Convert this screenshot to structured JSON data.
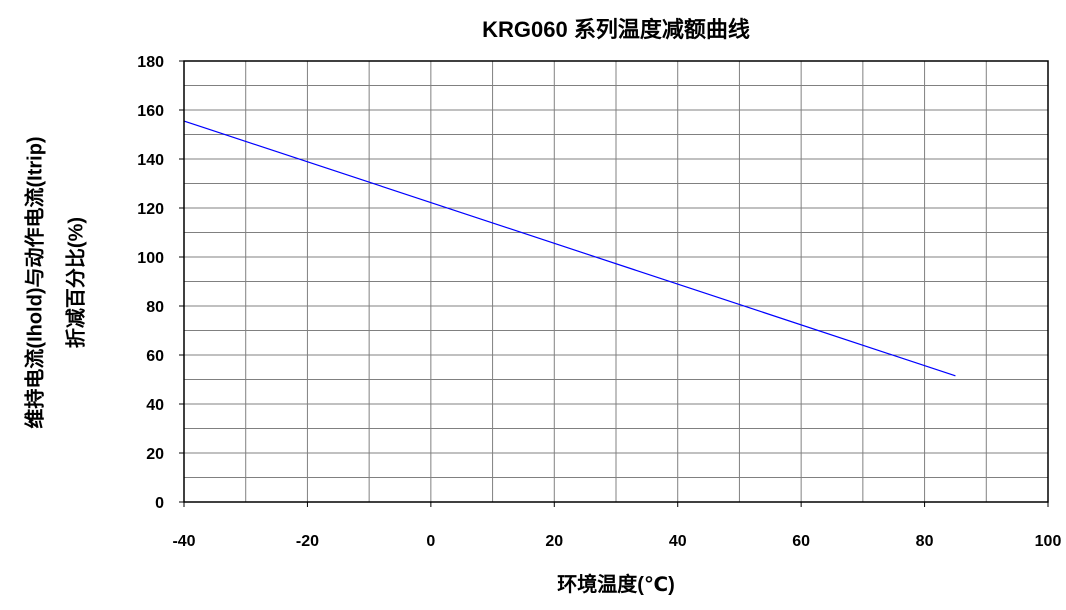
{
  "chart_data": {
    "type": "line",
    "title": "KRG060 系列温度减额曲线",
    "xlabel": "环境温度(℃)",
    "ylabel_lines": [
      "维持电流(Ihold)与动作电流(Itrip)",
      "折减百分比(%)"
    ],
    "xlim": [
      -40,
      100
    ],
    "ylim": [
      0,
      180
    ],
    "x_ticks": [
      -40,
      -20,
      0,
      20,
      40,
      60,
      80,
      100
    ],
    "y_ticks": [
      0,
      20,
      40,
      60,
      80,
      100,
      120,
      140,
      160,
      180
    ],
    "x_minor_step": 10,
    "y_minor_step": 10,
    "grid": true,
    "legend": "none",
    "series": [
      {
        "color": "#0000ff",
        "x": [
          -40,
          85
        ],
        "y": [
          155.5,
          51.5
        ]
      }
    ]
  }
}
